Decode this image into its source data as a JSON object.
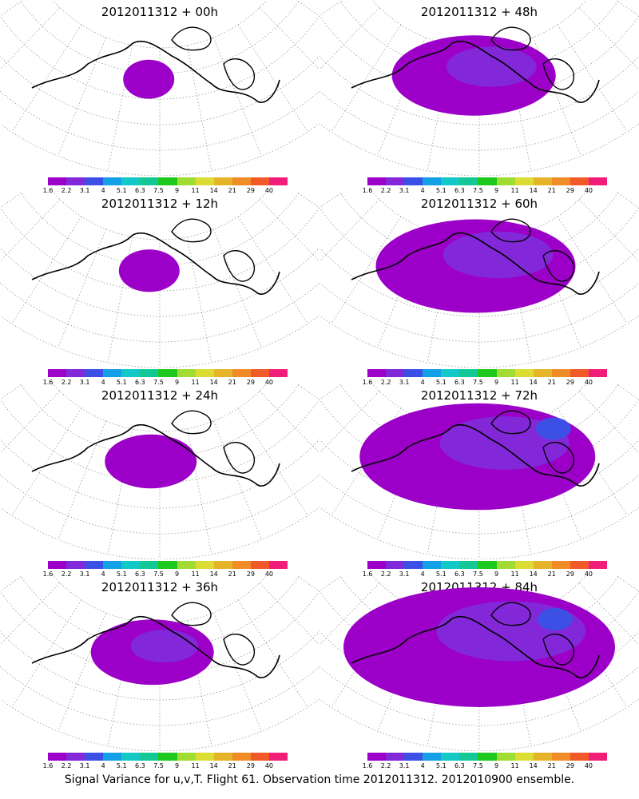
{
  "panels": [
    {
      "title": "2012011312 + 00h",
      "spread": 0.08
    },
    {
      "title": "2012011312 + 48h",
      "spread": 0.55
    },
    {
      "title": "2012011312 + 12h",
      "spread": 0.12
    },
    {
      "title": "2012011312 + 60h",
      "spread": 0.7
    },
    {
      "title": "2012011312 + 24h",
      "spread": 0.25
    },
    {
      "title": "2012011312 + 72h",
      "spread": 0.85
    },
    {
      "title": "2012011312 + 36h",
      "spread": 0.38
    },
    {
      "title": "2012011312 + 84h",
      "spread": 1.0
    }
  ],
  "colorbar": {
    "labels": [
      "1.6",
      "2.2",
      "3.1",
      "4",
      "5.1",
      "6.3",
      "7.5",
      "9",
      "11",
      "14",
      "21",
      "29",
      "40"
    ],
    "colors": [
      "#9c00c8",
      "#8228d8",
      "#3c50e6",
      "#14a0e6",
      "#14c8c8",
      "#14c896",
      "#1ec81e",
      "#a0dc32",
      "#dcdc32",
      "#e6b428",
      "#f08c28",
      "#f05a28",
      "#f01e78"
    ]
  },
  "caption": "Signal Variance for u,v,T. Flight 61. Observation time 2012011312. 2012010900 ensemble."
}
